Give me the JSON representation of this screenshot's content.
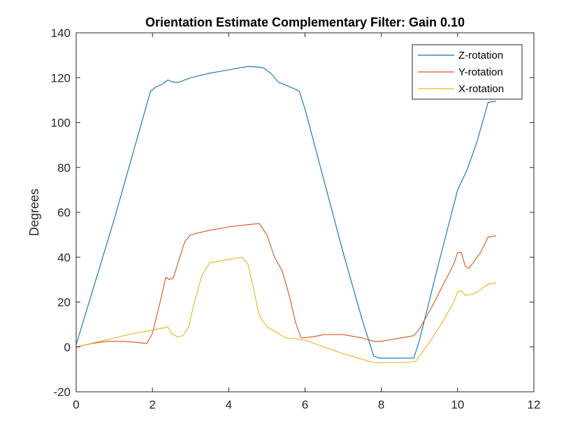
{
  "chart_data": {
    "type": "line",
    "title": "Orientation Estimate Complementary Filter: Gain 0.10",
    "xlabel": "",
    "ylabel": "Degrees",
    "xlim": [
      0,
      12
    ],
    "ylim": [
      -20,
      140
    ],
    "xticks": [
      0,
      2,
      4,
      6,
      8,
      10,
      12
    ],
    "yticks": [
      -20,
      0,
      20,
      40,
      60,
      80,
      100,
      120,
      140
    ],
    "grid": false,
    "legend_position": "top-right",
    "series": [
      {
        "name": "Z-rotation",
        "color": "#0072BD",
        "x": [
          0,
          0.5,
          1.0,
          1.5,
          1.8,
          1.95,
          2.1,
          2.25,
          2.4,
          2.55,
          2.7,
          3.0,
          3.5,
          4.0,
          4.5,
          4.7,
          4.9,
          5.1,
          5.3,
          5.6,
          5.85,
          6.0,
          6.5,
          7.0,
          7.5,
          7.8,
          7.95,
          8.2,
          8.5,
          8.85,
          9.0,
          9.5,
          10.0,
          10.25,
          10.5,
          10.8,
          11.0
        ],
        "y": [
          1,
          29,
          57,
          87,
          105,
          114,
          116,
          117,
          119,
          118,
          118,
          120,
          122,
          123.5,
          125,
          124.8,
          124.5,
          122,
          118,
          116,
          114,
          106,
          74,
          42,
          12,
          -4,
          -5,
          -5,
          -5,
          -5,
          3,
          37,
          70,
          79,
          91,
          109,
          109.5
        ]
      },
      {
        "name": "Y-rotation",
        "color": "#D95319",
        "x": [
          0,
          0.4,
          0.8,
          1.2,
          1.6,
          1.85,
          2.0,
          2.2,
          2.35,
          2.45,
          2.55,
          2.7,
          2.85,
          3.0,
          3.5,
          4.0,
          4.5,
          4.8,
          5.0,
          5.2,
          5.4,
          5.6,
          5.75,
          5.9,
          6.2,
          6.5,
          7.0,
          7.5,
          7.8,
          8.0,
          8.5,
          8.85,
          9.0,
          9.3,
          9.6,
          9.9,
          10.0,
          10.1,
          10.2,
          10.3,
          10.6,
          10.8,
          11.0
        ],
        "y": [
          0,
          1.5,
          2.5,
          2.5,
          2,
          1.5,
          6,
          20,
          31,
          30,
          31,
          39,
          47,
          50,
          52,
          53.5,
          54.5,
          55,
          50,
          40,
          34,
          22,
          11,
          4,
          4.5,
          5.5,
          5.5,
          4,
          2.5,
          2.5,
          4,
          5,
          8,
          17,
          27,
          37,
          42,
          42,
          36,
          35,
          42,
          49,
          49.5
        ]
      },
      {
        "name": "X-rotation",
        "color": "#EDB120",
        "x": [
          0,
          0.5,
          1.0,
          1.5,
          2.0,
          2.3,
          2.4,
          2.5,
          2.65,
          2.8,
          2.95,
          3.1,
          3.3,
          3.5,
          4.0,
          4.35,
          4.5,
          4.65,
          4.8,
          5.0,
          5.3,
          5.5,
          5.8,
          6.0,
          6.5,
          7.0,
          7.5,
          7.8,
          8.0,
          8.5,
          8.9,
          9.0,
          9.3,
          9.6,
          9.9,
          10.0,
          10.1,
          10.2,
          10.4,
          10.6,
          10.8,
          11.0
        ],
        "y": [
          0,
          2,
          4,
          6,
          7.5,
          8.5,
          9,
          6,
          4.5,
          5,
          9,
          20,
          32,
          37.5,
          39,
          40,
          37,
          26,
          14,
          9,
          6,
          4,
          3.5,
          3,
          0,
          -3,
          -5.5,
          -7,
          -7,
          -7,
          -6.5,
          -4,
          3,
          11,
          20,
          24.5,
          25,
          23,
          23.5,
          25.5,
          28,
          28.5
        ]
      }
    ]
  }
}
